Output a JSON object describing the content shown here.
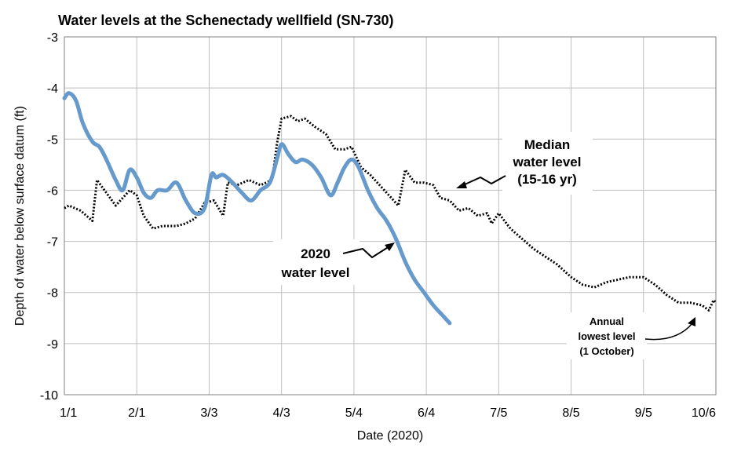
{
  "chart_data": {
    "type": "line",
    "title": "Water levels at the Schenectady wellfield (SN-730)",
    "xlabel": "Date (2020)",
    "ylabel": "Depth of water below surface datum (ft)",
    "x_ticks": [
      "1/1",
      "2/1",
      "3/3",
      "4/3",
      "5/4",
      "6/4",
      "7/5",
      "8/5",
      "9/5",
      "10/6"
    ],
    "ylim": [
      -10,
      -3
    ],
    "y_ticks": [
      "-3",
      "-4",
      "-5",
      "-6",
      "-7",
      "-8",
      "-9",
      "-10"
    ],
    "grid": true,
    "colors": {
      "series_2020": "#6699cc",
      "series_median": "#000000",
      "grid": "#bfbfbf"
    },
    "series": [
      {
        "name": "2020 water level",
        "style": "solid",
        "points": [
          [
            "1/1",
            -4.2
          ],
          [
            "1/3",
            -4.1
          ],
          [
            "1/6",
            -4.25
          ],
          [
            "1/9",
            -4.7
          ],
          [
            "1/13",
            -5.05
          ],
          [
            "1/16",
            -5.15
          ],
          [
            "1/19",
            -5.4
          ],
          [
            "1/23",
            -5.8
          ],
          [
            "1/26",
            -6.0
          ],
          [
            "1/29",
            -5.6
          ],
          [
            "2/1",
            -5.75
          ],
          [
            "2/4",
            -6.05
          ],
          [
            "2/7",
            -6.15
          ],
          [
            "2/10",
            -6.0
          ],
          [
            "2/14",
            -6.0
          ],
          [
            "2/18",
            -5.85
          ],
          [
            "2/22",
            -6.2
          ],
          [
            "2/26",
            -6.45
          ],
          [
            "3/1",
            -6.35
          ],
          [
            "3/4",
            -5.7
          ],
          [
            "3/6",
            -5.75
          ],
          [
            "3/9",
            -5.7
          ],
          [
            "3/13",
            -5.85
          ],
          [
            "3/17",
            -6.05
          ],
          [
            "3/21",
            -6.2
          ],
          [
            "3/25",
            -6.0
          ],
          [
            "3/29",
            -5.85
          ],
          [
            "4/1",
            -5.4
          ],
          [
            "4/3",
            -5.1
          ],
          [
            "4/6",
            -5.3
          ],
          [
            "4/9",
            -5.45
          ],
          [
            "4/12",
            -5.4
          ],
          [
            "4/16",
            -5.5
          ],
          [
            "4/20",
            -5.75
          ],
          [
            "4/24",
            -6.1
          ],
          [
            "4/27",
            -5.85
          ],
          [
            "4/30",
            -5.55
          ],
          [
            "5/3",
            -5.4
          ],
          [
            "5/6",
            -5.55
          ],
          [
            "5/10",
            -6.0
          ],
          [
            "5/14",
            -6.35
          ],
          [
            "5/18",
            -6.6
          ],
          [
            "5/22",
            -6.95
          ],
          [
            "5/26",
            -7.4
          ],
          [
            "5/30",
            -7.75
          ],
          [
            "6/3",
            -8.0
          ],
          [
            "6/7",
            -8.25
          ],
          [
            "6/11",
            -8.45
          ],
          [
            "6/14",
            -8.6
          ]
        ]
      },
      {
        "name": "Median water level (15-16 yr)",
        "style": "dotted",
        "points": [
          [
            "1/1",
            -6.35
          ],
          [
            "1/3",
            -6.3
          ],
          [
            "1/8",
            -6.4
          ],
          [
            "1/13",
            -6.6
          ],
          [
            "1/15",
            -5.8
          ],
          [
            "1/19",
            -6.05
          ],
          [
            "1/23",
            -6.3
          ],
          [
            "1/26",
            -6.15
          ],
          [
            "1/29",
            -6.0
          ],
          [
            "2/1",
            -6.1
          ],
          [
            "2/4",
            -6.5
          ],
          [
            "2/8",
            -6.75
          ],
          [
            "2/12",
            -6.7
          ],
          [
            "2/18",
            -6.7
          ],
          [
            "2/22",
            -6.65
          ],
          [
            "2/26",
            -6.55
          ],
          [
            "3/1",
            -6.25
          ],
          [
            "3/5",
            -6.2
          ],
          [
            "3/9",
            -6.5
          ],
          [
            "3/11",
            -5.85
          ],
          [
            "3/15",
            -5.9
          ],
          [
            "3/20",
            -5.8
          ],
          [
            "3/25",
            -5.9
          ],
          [
            "3/30",
            -5.8
          ],
          [
            "4/1",
            -5.1
          ],
          [
            "4/3",
            -4.6
          ],
          [
            "4/7",
            -4.55
          ],
          [
            "4/10",
            -4.65
          ],
          [
            "4/13",
            -4.6
          ],
          [
            "4/17",
            -4.75
          ],
          [
            "4/22",
            -4.9
          ],
          [
            "4/26",
            -5.2
          ],
          [
            "4/30",
            -5.2
          ],
          [
            "5/3",
            -5.15
          ],
          [
            "5/7",
            -5.55
          ],
          [
            "5/11",
            -5.7
          ],
          [
            "5/15",
            -5.9
          ],
          [
            "5/19",
            -6.1
          ],
          [
            "5/23",
            -6.3
          ],
          [
            "5/26",
            -5.6
          ],
          [
            "5/30",
            -5.85
          ],
          [
            "6/3",
            -5.85
          ],
          [
            "6/7",
            -5.9
          ],
          [
            "6/10",
            -6.15
          ],
          [
            "6/14",
            -6.2
          ],
          [
            "6/18",
            -6.4
          ],
          [
            "6/22",
            -6.35
          ],
          [
            "6/26",
            -6.5
          ],
          [
            "6/30",
            -6.45
          ],
          [
            "7/2",
            -6.65
          ],
          [
            "7/5",
            -6.45
          ],
          [
            "7/10",
            -6.75
          ],
          [
            "7/15",
            -6.95
          ],
          [
            "7/20",
            -7.15
          ],
          [
            "7/25",
            -7.3
          ],
          [
            "7/30",
            -7.45
          ],
          [
            "8/5",
            -7.7
          ],
          [
            "8/10",
            -7.85
          ],
          [
            "8/15",
            -7.9
          ],
          [
            "8/20",
            -7.8
          ],
          [
            "8/25",
            -7.75
          ],
          [
            "8/30",
            -7.7
          ],
          [
            "9/5",
            -7.7
          ],
          [
            "9/10",
            -7.85
          ],
          [
            "9/15",
            -8.05
          ],
          [
            "9/20",
            -8.2
          ],
          [
            "9/25",
            -8.2
          ],
          [
            "9/30",
            -8.25
          ],
          [
            "10/3",
            -8.35
          ],
          [
            "10/5",
            -8.15
          ],
          [
            "10/6",
            -8.2
          ]
        ]
      }
    ],
    "annotations": {
      "label_2020": [
        "2020",
        "water level"
      ],
      "label_median": [
        "Median",
        "water level",
        "(15-16 yr)"
      ],
      "label_lowest": [
        "Annual",
        "lowest level",
        "(1 October)"
      ]
    }
  }
}
